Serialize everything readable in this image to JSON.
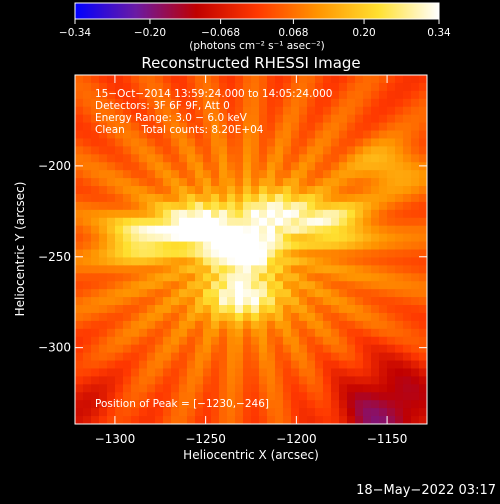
{
  "chart_data": {
    "type": "heatmap",
    "title": "Reconstructed RHESSI Image",
    "xlabel": "Heliocentric X (arcsec)",
    "ylabel": "Heliocentric Y (arcsec)",
    "xlim": [
      -1322,
      -1128
    ],
    "ylim": [
      -342,
      -150
    ],
    "xticks": [
      -1300,
      -1250,
      -1200,
      -1150
    ],
    "xtick_labels": [
      "−1300",
      "−1250",
      "−1200",
      "−1150"
    ],
    "yticks": [
      -200,
      -250,
      -300
    ],
    "ytick_labels": [
      "−200",
      "−250",
      "−300"
    ],
    "colorbar": {
      "colormap": "IDL red-temperature (blue → purple → red → orange → yellow → white)",
      "colors": [
        "#0000ff",
        "#6a1aa4",
        "#c00000",
        "#ff3800",
        "#ff9400",
        "#ffe030",
        "#ffffff"
      ],
      "ticks": [
        -0.34,
        -0.2,
        -0.068,
        0.068,
        0.2,
        0.34
      ],
      "tick_labels": [
        "−0.34",
        "−0.20",
        "−0.068",
        "0.068",
        "0.20",
        "0.34"
      ],
      "label": "(photons cm⁻² s⁻¹ asec⁻²)"
    },
    "annotations": [
      "15−Oct−2014 13:59:24.000 to 14:05:24.000",
      "Detectors: 3F 6F 9F, Att 0",
      "Energy Range: 3.0 − 6.0 keV",
      "Clean     Total counts: 8.20E+04"
    ],
    "peak_label": "Position of Peak = [−1230,−246]",
    "peak": [
      -1230,
      -246
    ],
    "sources": [
      {
        "x": -1230,
        "y": -246,
        "intensity": 0.34
      },
      {
        "x": -1255,
        "y": -232,
        "intensity": 0.29
      },
      {
        "x": -1287,
        "y": -240,
        "intensity": 0.23
      },
      {
        "x": -1212,
        "y": -226,
        "intensity": 0.24
      },
      {
        "x": -1180,
        "y": -231,
        "intensity": 0.21
      },
      {
        "x": -1230,
        "y": -272,
        "intensity": 0.27
      },
      {
        "x": -1148,
        "y": -200,
        "intensity": 0.16
      }
    ]
  },
  "footer": {
    "timestamp": "18−May−2022 03:17"
  }
}
